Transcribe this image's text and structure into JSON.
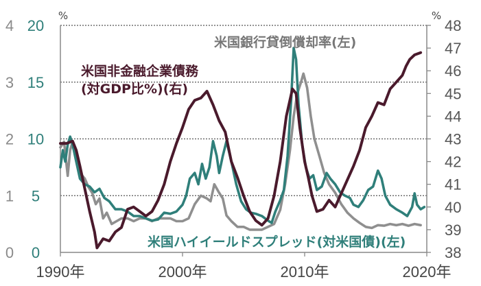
{
  "chart_data": {
    "type": "line",
    "x_ticks": [
      "1990年",
      "2000年",
      "2010年",
      "2020年"
    ],
    "x_range": [
      1990,
      2020
    ],
    "left_axis_outer": {
      "unit": "%",
      "ticks": [
        "0",
        "1",
        "2",
        "3",
        "4"
      ],
      "range": [
        0,
        4
      ],
      "color": "#8a8a8a"
    },
    "left_axis_inner": {
      "unit": "",
      "ticks": [
        "0",
        "5",
        "10",
        "15",
        "20"
      ],
      "range": [
        0,
        20
      ],
      "color": "#2f7f7a"
    },
    "right_axis": {
      "unit": "%",
      "ticks": [
        "38",
        "39",
        "40",
        "41",
        "42",
        "43",
        "44",
        "45",
        "46",
        "47",
        "48"
      ],
      "range": [
        38,
        48
      ],
      "color": "#222222"
    },
    "grid": "dotted horizontal at 5, 10, 15, 20 (left scale)",
    "series": [
      {
        "name": "米国銀行貸倒償却率(左)",
        "axis": "left_outer",
        "color": "#8f8f8f",
        "points": [
          [
            1990.0,
            1.85
          ],
          [
            1990.3,
            1.95
          ],
          [
            1990.6,
            1.35
          ],
          [
            1990.8,
            1.8
          ],
          [
            1991.0,
            1.95
          ],
          [
            1991.3,
            1.75
          ],
          [
            1991.6,
            1.4
          ],
          [
            1992.0,
            1.3
          ],
          [
            1992.3,
            1.15
          ],
          [
            1992.6,
            1.05
          ],
          [
            1992.9,
            0.85
          ],
          [
            1993.2,
            0.95
          ],
          [
            1993.5,
            0.6
          ],
          [
            1993.8,
            0.7
          ],
          [
            1994.2,
            0.5
          ],
          [
            1994.6,
            0.55
          ],
          [
            1995.0,
            0.6
          ],
          [
            1995.5,
            0.6
          ],
          [
            1996.0,
            0.55
          ],
          [
            1996.5,
            0.6
          ],
          [
            1997.0,
            0.6
          ],
          [
            1997.5,
            0.55
          ],
          [
            1998.0,
            0.6
          ],
          [
            1998.5,
            0.6
          ],
          [
            1999.0,
            0.6
          ],
          [
            1999.5,
            0.55
          ],
          [
            2000.0,
            0.55
          ],
          [
            2000.5,
            0.6
          ],
          [
            2001.0,
            0.85
          ],
          [
            2001.5,
            1.0
          ],
          [
            2002.0,
            0.95
          ],
          [
            2002.3,
            0.9
          ],
          [
            2002.6,
            1.2
          ],
          [
            2003.0,
            1.05
          ],
          [
            2003.3,
            0.95
          ],
          [
            2003.6,
            0.65
          ],
          [
            2004.0,
            0.55
          ],
          [
            2004.5,
            0.45
          ],
          [
            2005.0,
            0.45
          ],
          [
            2005.5,
            0.4
          ],
          [
            2006.0,
            0.4
          ],
          [
            2006.5,
            0.4
          ],
          [
            2007.0,
            0.45
          ],
          [
            2007.5,
            0.5
          ],
          [
            2008.0,
            0.75
          ],
          [
            2008.4,
            1.2
          ],
          [
            2008.8,
            1.8
          ],
          [
            2009.1,
            2.4
          ],
          [
            2009.4,
            2.8
          ],
          [
            2009.7,
            3.0
          ],
          [
            2009.9,
            3.15
          ],
          [
            2010.2,
            2.9
          ],
          [
            2010.5,
            2.4
          ],
          [
            2010.8,
            2.0
          ],
          [
            2011.2,
            1.7
          ],
          [
            2011.6,
            1.4
          ],
          [
            2012.0,
            1.2
          ],
          [
            2012.5,
            1.05
          ],
          [
            2013.0,
            0.85
          ],
          [
            2013.5,
            0.7
          ],
          [
            2014.0,
            0.6
          ],
          [
            2014.5,
            0.52
          ],
          [
            2015.0,
            0.45
          ],
          [
            2015.5,
            0.43
          ],
          [
            2016.0,
            0.48
          ],
          [
            2016.5,
            0.47
          ],
          [
            2017.0,
            0.5
          ],
          [
            2017.5,
            0.48
          ],
          [
            2018.0,
            0.5
          ],
          [
            2018.5,
            0.47
          ],
          [
            2019.0,
            0.5
          ],
          [
            2019.5,
            0.48
          ]
        ]
      },
      {
        "name": "米国ハイイールドスプレッド(対米国債)(左)",
        "axis": "left_inner",
        "color": "#2f7f7a",
        "points": [
          [
            1990.0,
            7.5
          ],
          [
            1990.2,
            9.0
          ],
          [
            1990.4,
            8.0
          ],
          [
            1990.6,
            9.5
          ],
          [
            1990.8,
            10.2
          ],
          [
            1991.0,
            9.5
          ],
          [
            1991.3,
            8.0
          ],
          [
            1991.6,
            6.5
          ],
          [
            1992.0,
            6.0
          ],
          [
            1992.4,
            5.8
          ],
          [
            1992.8,
            5.3
          ],
          [
            1993.2,
            5.6
          ],
          [
            1993.6,
            4.8
          ],
          [
            1994.0,
            4.5
          ],
          [
            1994.5,
            3.8
          ],
          [
            1995.0,
            3.8
          ],
          [
            1995.5,
            3.6
          ],
          [
            1996.0,
            3.2
          ],
          [
            1996.5,
            3.2
          ],
          [
            1997.0,
            3.0
          ],
          [
            1997.5,
            2.8
          ],
          [
            1998.0,
            2.9
          ],
          [
            1998.5,
            3.5
          ],
          [
            1999.0,
            3.4
          ],
          [
            1999.5,
            3.6
          ],
          [
            2000.0,
            4.2
          ],
          [
            2000.3,
            5.0
          ],
          [
            2000.6,
            6.5
          ],
          [
            2001.0,
            7.0
          ],
          [
            2001.3,
            6.0
          ],
          [
            2001.6,
            7.8
          ],
          [
            2001.9,
            6.5
          ],
          [
            2002.2,
            7.5
          ],
          [
            2002.5,
            9.8
          ],
          [
            2002.8,
            8.5
          ],
          [
            2003.0,
            7.0
          ],
          [
            2003.3,
            8.5
          ],
          [
            2003.6,
            9.8
          ],
          [
            2004.0,
            8.0
          ],
          [
            2004.4,
            6.0
          ],
          [
            2004.8,
            4.5
          ],
          [
            2005.2,
            3.8
          ],
          [
            2005.6,
            3.5
          ],
          [
            2006.0,
            3.4
          ],
          [
            2006.5,
            3.2
          ],
          [
            2007.0,
            2.8
          ],
          [
            2007.3,
            2.6
          ],
          [
            2007.6,
            3.6
          ],
          [
            2008.0,
            4.6
          ],
          [
            2008.3,
            5.5
          ],
          [
            2008.6,
            8.5
          ],
          [
            2008.9,
            13.5
          ],
          [
            2009.1,
            18.0
          ],
          [
            2009.3,
            17.0
          ],
          [
            2009.5,
            13.0
          ],
          [
            2009.8,
            9.5
          ],
          [
            2010.1,
            7.5
          ],
          [
            2010.4,
            6.5
          ],
          [
            2010.7,
            6.8
          ],
          [
            2011.0,
            5.5
          ],
          [
            2011.4,
            5.8
          ],
          [
            2011.8,
            7.0
          ],
          [
            2012.1,
            6.5
          ],
          [
            2012.5,
            6.0
          ],
          [
            2012.9,
            5.3
          ],
          [
            2013.3,
            5.0
          ],
          [
            2013.7,
            4.8
          ],
          [
            2014.0,
            4.2
          ],
          [
            2014.4,
            4.0
          ],
          [
            2014.8,
            4.6
          ],
          [
            2015.2,
            5.5
          ],
          [
            2015.6,
            5.8
          ],
          [
            2016.0,
            7.2
          ],
          [
            2016.3,
            6.5
          ],
          [
            2016.6,
            5.0
          ],
          [
            2017.0,
            4.2
          ],
          [
            2017.5,
            3.8
          ],
          [
            2018.0,
            3.5
          ],
          [
            2018.4,
            3.2
          ],
          [
            2018.8,
            4.0
          ],
          [
            2019.0,
            5.2
          ],
          [
            2019.2,
            4.2
          ],
          [
            2019.5,
            3.8
          ],
          [
            2019.8,
            4.0
          ]
        ]
      },
      {
        "name": "米国非金融企業債務(対GDP比%)(右)",
        "axis": "right",
        "color": "#4a1a2c",
        "points": [
          [
            1990.0,
            42.8
          ],
          [
            1990.5,
            42.8
          ],
          [
            1991.0,
            42.9
          ],
          [
            1991.3,
            42.5
          ],
          [
            1991.6,
            41.8
          ],
          [
            1992.0,
            40.8
          ],
          [
            1992.4,
            39.8
          ],
          [
            1992.8,
            38.9
          ],
          [
            1993.0,
            38.2
          ],
          [
            1993.5,
            38.6
          ],
          [
            1994.0,
            38.5
          ],
          [
            1994.5,
            38.9
          ],
          [
            1995.0,
            39.1
          ],
          [
            1995.5,
            39.9
          ],
          [
            1996.0,
            40.0
          ],
          [
            1996.5,
            39.8
          ],
          [
            1997.0,
            39.6
          ],
          [
            1997.5,
            39.8
          ],
          [
            1998.0,
            40.3
          ],
          [
            1998.5,
            41.0
          ],
          [
            1999.0,
            42.0
          ],
          [
            1999.5,
            42.8
          ],
          [
            2000.0,
            43.5
          ],
          [
            2000.5,
            44.3
          ],
          [
            2001.0,
            44.7
          ],
          [
            2001.5,
            44.8
          ],
          [
            2002.0,
            45.1
          ],
          [
            2002.5,
            44.5
          ],
          [
            2003.0,
            43.8
          ],
          [
            2003.5,
            43.3
          ],
          [
            2004.0,
            42.0
          ],
          [
            2004.5,
            41.3
          ],
          [
            2005.0,
            40.5
          ],
          [
            2005.5,
            39.8
          ],
          [
            2006.0,
            39.4
          ],
          [
            2006.5,
            39.2
          ],
          [
            2007.0,
            39.5
          ],
          [
            2007.5,
            40.5
          ],
          [
            2008.0,
            42.0
          ],
          [
            2008.5,
            44.0
          ],
          [
            2009.0,
            45.2
          ],
          [
            2009.3,
            45.0
          ],
          [
            2009.6,
            43.5
          ],
          [
            2010.0,
            42.0
          ],
          [
            2010.3,
            41.3
          ],
          [
            2010.6,
            40.5
          ],
          [
            2011.0,
            39.8
          ],
          [
            2011.5,
            39.9
          ],
          [
            2012.0,
            40.3
          ],
          [
            2012.5,
            40.0
          ],
          [
            2013.0,
            40.6
          ],
          [
            2013.5,
            41.2
          ],
          [
            2014.0,
            41.8
          ],
          [
            2014.5,
            42.5
          ],
          [
            2015.0,
            43.5
          ],
          [
            2015.5,
            44.0
          ],
          [
            2016.0,
            44.6
          ],
          [
            2016.5,
            44.5
          ],
          [
            2017.0,
            45.2
          ],
          [
            2017.5,
            45.5
          ],
          [
            2018.0,
            45.8
          ],
          [
            2018.3,
            46.2
          ],
          [
            2018.6,
            46.5
          ],
          [
            2019.0,
            46.7
          ],
          [
            2019.5,
            46.8
          ]
        ]
      }
    ]
  }
}
